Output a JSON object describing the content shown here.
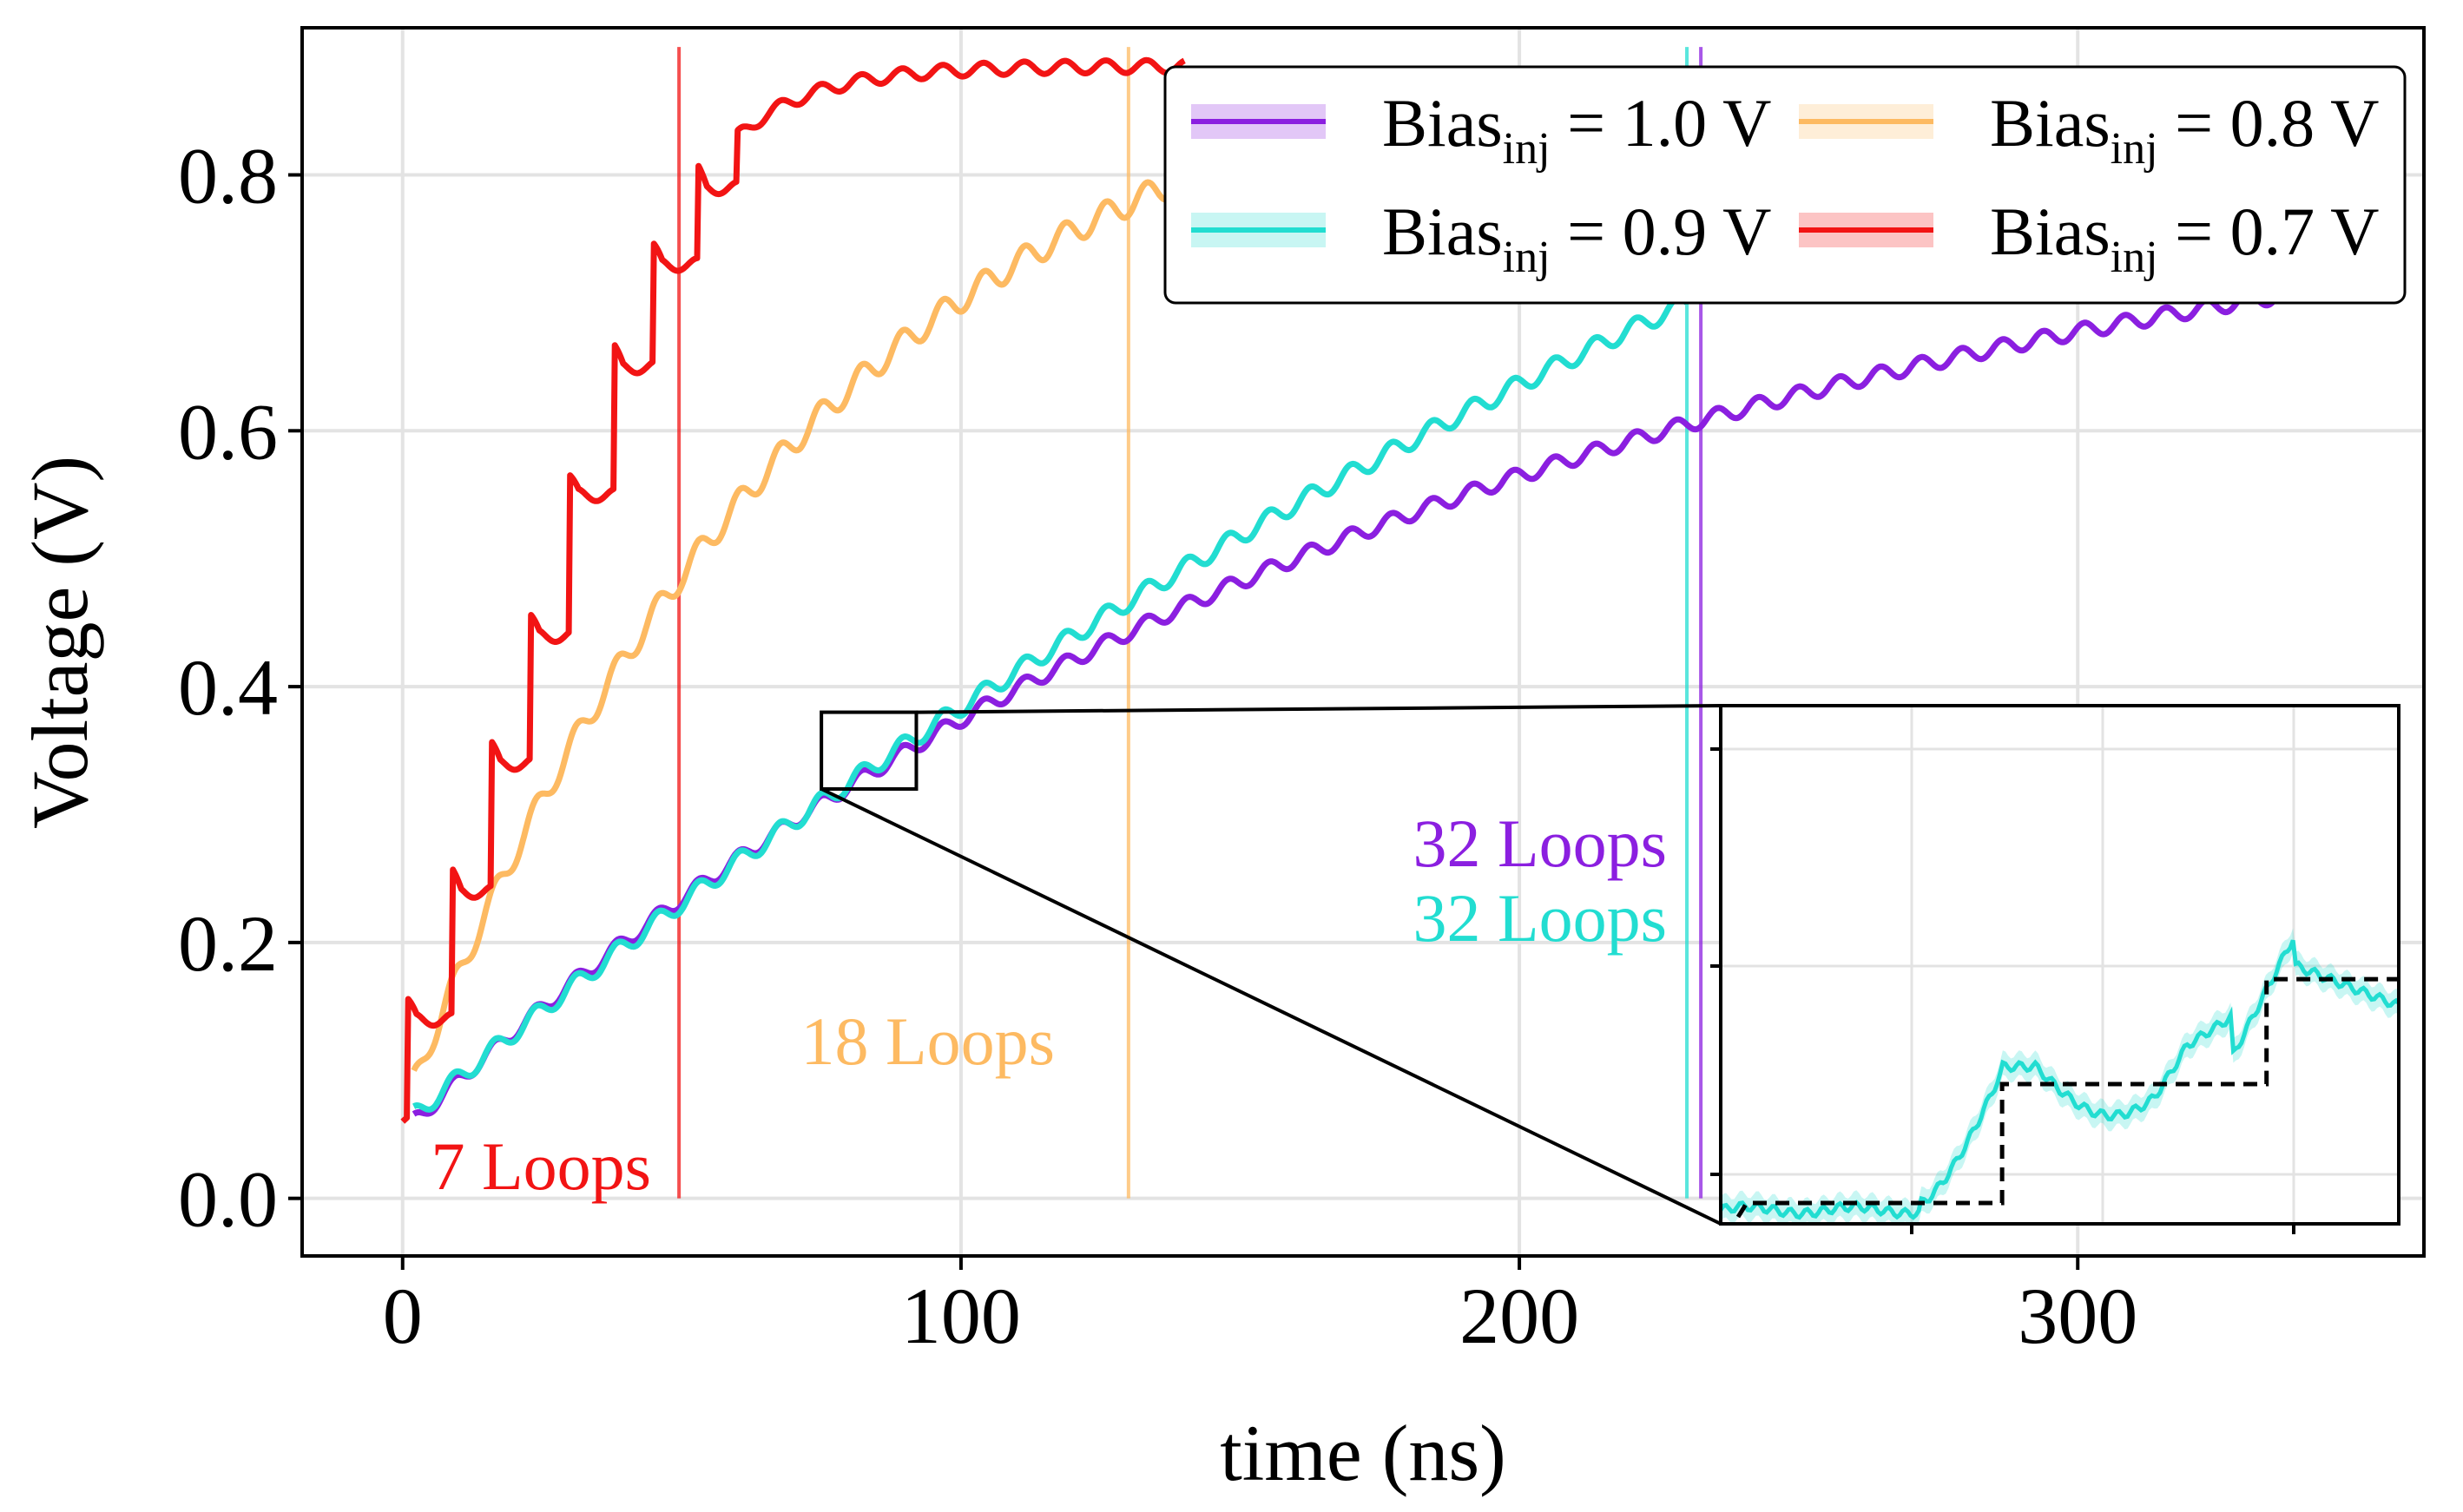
{
  "chart_data": {
    "type": "line",
    "xlabel": "time (ns)",
    "ylabel": "Voltage (V)",
    "xlim": [
      -18,
      362
    ],
    "ylim": [
      -0.045,
      0.915
    ],
    "xticks": [
      0,
      100,
      200,
      300
    ],
    "xtick_labels": [
      "0",
      "100",
      "200",
      "300"
    ],
    "yticks": [
      0.0,
      0.2,
      0.4,
      0.6,
      0.8
    ],
    "ytick_labels": [
      "0.0",
      "0.2",
      "0.4",
      "0.6",
      "0.8"
    ],
    "grid": true,
    "legend_position": "top-right",
    "series": [
      {
        "key": "b10",
        "legend_prefix": "Bias",
        "legend_sub": "inj",
        "legend_suffix": " = 1.0 V",
        "color": "#8B1FE0",
        "x_start": 2,
        "x_end": 351,
        "v0": 0.06,
        "v_inf": 0.84,
        "tau": 190,
        "ripple_period": 7.3,
        "ripple_amp": 0.006,
        "stop_time": 232.5,
        "loops_label": "32 Loops"
      },
      {
        "key": "b09",
        "legend_prefix": "Bias",
        "legend_sub": "inj",
        "legend_suffix": " = 0.9 V",
        "color": "#22DDD1",
        "x_start": 2,
        "x_end": 230,
        "v0": 0.065,
        "v_inf": 1.5,
        "tau": 390,
        "ripple_period": 7.3,
        "ripple_amp": 0.007,
        "stop_time": 230,
        "loops_label": "32 Loops"
      },
      {
        "key": "b08",
        "legend_prefix": "Bias",
        "legend_sub": "inj",
        "legend_suffix": " = 0.8 V",
        "color": "#FDBA62",
        "x_start": 2,
        "x_end": 145,
        "v0": 0.09,
        "v_inf": 0.93,
        "tau": 75,
        "ripple_period": 7.3,
        "ripple_amp": 0.01,
        "stop_time": 130,
        "loops_label": "18 Loops"
      },
      {
        "key": "b07",
        "legend_prefix": "Bias",
        "legend_sub": "inj",
        "legend_suffix": " = 0.7 V",
        "color": "#F21414",
        "x_start": 0,
        "x_end": 140,
        "v0": 0.06,
        "steps": [
          [
            1,
            0.14
          ],
          [
            9,
            0.24
          ],
          [
            16,
            0.34
          ],
          [
            23,
            0.44
          ],
          [
            30,
            0.55
          ],
          [
            38,
            0.65
          ],
          [
            45,
            0.73
          ],
          [
            53,
            0.79
          ],
          [
            60,
            0.83
          ]
        ],
        "v_inf": 0.885,
        "tau": 14,
        "ripple_period": 7.3,
        "ripple_amp": 0.005,
        "stop_time": 49.5,
        "loops_label": "7 Loops"
      }
    ],
    "zoom_region": {
      "x_range": [
        75,
        92
      ],
      "y_range": [
        0.32,
        0.38
      ]
    },
    "inset": {
      "series": "b09",
      "step_levels": [
        0.005,
        0.175,
        0.325
      ],
      "step_times": [
        0.415,
        0.805
      ]
    }
  }
}
